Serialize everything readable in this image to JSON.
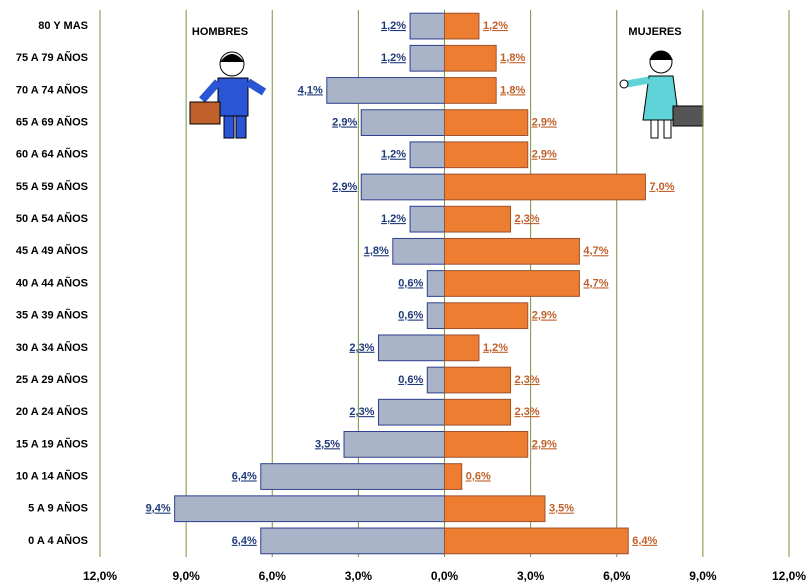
{
  "chart_data": {
    "type": "pyramid",
    "categories": [
      "80 Y MAS",
      "75 A 79 AÑOS",
      "70 A 74 AÑOS",
      "65 A 69 AÑOS",
      "60 A 64 AÑOS",
      "55 A 59 AÑOS",
      "50 A 54 AÑOS",
      "45 A 49 AÑOS",
      "40 A 44 AÑOS",
      "35 A 39 AÑOS",
      "30 A 34 AÑOS",
      "25 A 29 AÑOS",
      "20 A 24 AÑOS",
      "15 A 19 AÑOS",
      "10 A 14 AÑOS",
      "5 A 9 AÑOS",
      "0 A 4 AÑOS"
    ],
    "series": [
      {
        "name": "HOMBRES",
        "color": "#aab4c8",
        "values": [
          1.2,
          1.2,
          4.1,
          2.9,
          1.2,
          2.9,
          1.2,
          1.8,
          0.6,
          0.6,
          2.3,
          0.6,
          2.3,
          3.5,
          6.4,
          9.4,
          6.4
        ],
        "value_labels": [
          "1,2%",
          "1,2%",
          "4,1%",
          "2,9%",
          "1,2%",
          "2,9%",
          "1,2%",
          "1,8%",
          "0,6%",
          "0,6%",
          "2,3%",
          "0,6%",
          "2,3%",
          "3,5%",
          "6,4%",
          "9,4%",
          "6,4%"
        ]
      },
      {
        "name": "MUJERES",
        "color": "#ed7d31",
        "values": [
          1.2,
          1.8,
          1.8,
          2.9,
          2.9,
          7.0,
          2.3,
          4.7,
          4.7,
          2.9,
          1.2,
          2.3,
          2.3,
          2.9,
          0.6,
          3.5,
          6.4
        ],
        "value_labels": [
          "1,2%",
          "1,8%",
          "1,8%",
          "2,9%",
          "2,9%",
          "7,0%",
          "2,3%",
          "4,7%",
          "4,7%",
          "2,9%",
          "1,2%",
          "2,3%",
          "2,3%",
          "2,9%",
          "0,6%",
          "3,5%",
          "6,4%"
        ]
      }
    ],
    "xlim": [
      -12,
      12
    ],
    "xticks": [
      {
        "value": -12,
        "label": "12,0%"
      },
      {
        "value": -9,
        "label": "9,0%"
      },
      {
        "value": -6,
        "label": "6,0%"
      },
      {
        "value": -3,
        "label": "3,0%"
      },
      {
        "value": 0,
        "label": "0,0%"
      },
      {
        "value": 3,
        "label": "3,0%"
      },
      {
        "value": 6,
        "label": "6,0%"
      },
      {
        "value": 9,
        "label": "9,0%"
      },
      {
        "value": 12,
        "label": "12,0%"
      }
    ],
    "grid": true
  }
}
